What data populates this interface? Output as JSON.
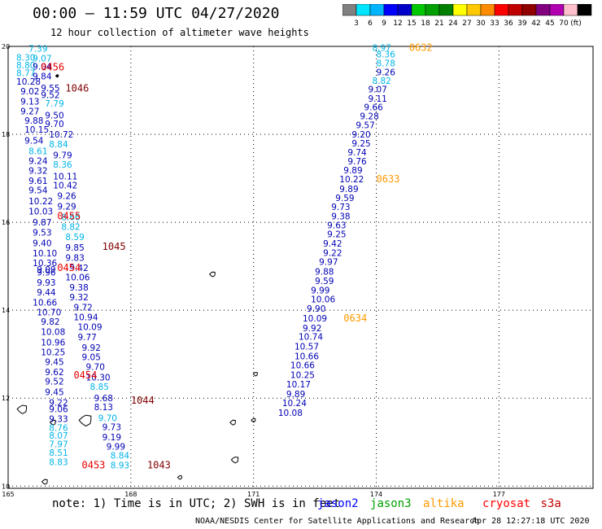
{
  "header": {
    "title": "00:00 – 11:59 UTC 04/27/2020",
    "subtitle": "12 hour collection of altimeter wave heights"
  },
  "color_scale": {
    "colors": [
      "#808080",
      "#00e5ff",
      "#00b4ff",
      "#0000ff",
      "#0000c8",
      "#00c800",
      "#00a000",
      "#008000",
      "#ffff00",
      "#ffc800",
      "#ff8c00",
      "#ff0000",
      "#c00000",
      "#900000",
      "#800080",
      "#b000b0",
      "#ffc0cb",
      "#000000"
    ],
    "labels": [
      "3",
      "6",
      "9",
      "12",
      "15",
      "18",
      "21",
      "24",
      "27",
      "30",
      "33",
      "36",
      "39",
      "42",
      "45",
      "70",
      "(ft)"
    ]
  },
  "map": {
    "x_ticks": [
      "165",
      "168",
      "171",
      "174",
      "177"
    ],
    "y_ticks": [
      "20",
      "18",
      "16",
      "14",
      "12",
      "10"
    ]
  },
  "chart_data": {
    "type": "scatter",
    "xlim": [
      165,
      179.3
    ],
    "ylim": [
      9.95,
      20.0
    ],
    "x_ticks": [
      165,
      168,
      171,
      174,
      177
    ],
    "y_ticks": [
      20,
      18,
      16,
      14,
      12,
      10
    ],
    "colors": {
      "blue": "#0000b4",
      "cyan": "#00b4e6",
      "red": "#e60000",
      "maroon": "#800000",
      "orange": "#ff9900"
    },
    "points": [
      {
        "lon": 165.5,
        "lat": 19.95,
        "t": "7.39",
        "c": "cyan"
      },
      {
        "lon": 165.2,
        "lat": 19.75,
        "t": "8.30",
        "c": "cyan"
      },
      {
        "lon": 165.6,
        "lat": 19.73,
        "t": "9.07",
        "c": "cyan"
      },
      {
        "lon": 165.2,
        "lat": 19.57,
        "t": "8.80",
        "c": "cyan"
      },
      {
        "lon": 165.6,
        "lat": 19.55,
        "t": "9.04",
        "c": "blue"
      },
      {
        "lon": 165.2,
        "lat": 19.4,
        "t": "8.77",
        "c": "cyan"
      },
      {
        "lon": 165.6,
        "lat": 19.32,
        "t": "9.84",
        "c": "blue"
      },
      {
        "lon": 165.2,
        "lat": 19.2,
        "t": "10.28",
        "c": "blue"
      },
      {
        "lon": 165.8,
        "lat": 19.06,
        "t": "9.55",
        "c": "blue"
      },
      {
        "lon": 165.3,
        "lat": 18.98,
        "t": "9.02",
        "c": "blue"
      },
      {
        "lon": 165.8,
        "lat": 18.9,
        "t": "9.52",
        "c": "blue"
      },
      {
        "lon": 165.3,
        "lat": 18.75,
        "t": "9.13",
        "c": "blue"
      },
      {
        "lon": 165.9,
        "lat": 18.7,
        "t": "7.79",
        "c": "cyan"
      },
      {
        "lon": 165.3,
        "lat": 18.53,
        "t": "9.27",
        "c": "blue"
      },
      {
        "lon": 165.9,
        "lat": 18.44,
        "t": "9.50",
        "c": "blue"
      },
      {
        "lon": 165.4,
        "lat": 18.32,
        "t": "9.88",
        "c": "blue"
      },
      {
        "lon": 165.9,
        "lat": 18.24,
        "t": "9.70",
        "c": "blue"
      },
      {
        "lon": 165.4,
        "lat": 18.11,
        "t": "10.15",
        "c": "blue"
      },
      {
        "lon": 166.0,
        "lat": 18.0,
        "t": "10.72",
        "c": "blue"
      },
      {
        "lon": 165.4,
        "lat": 17.86,
        "t": "9.54",
        "c": "blue"
      },
      {
        "lon": 166.0,
        "lat": 17.78,
        "t": "8.84",
        "c": "cyan"
      },
      {
        "lon": 165.5,
        "lat": 17.62,
        "t": "8.61",
        "c": "cyan"
      },
      {
        "lon": 166.1,
        "lat": 17.53,
        "t": "9.79",
        "c": "blue"
      },
      {
        "lon": 165.5,
        "lat": 17.4,
        "t": "9.24",
        "c": "blue"
      },
      {
        "lon": 166.1,
        "lat": 17.32,
        "t": "8.36",
        "c": "cyan"
      },
      {
        "lon": 165.5,
        "lat": 17.18,
        "t": "9.32",
        "c": "blue"
      },
      {
        "lon": 166.1,
        "lat": 17.05,
        "t": "10.11",
        "c": "blue"
      },
      {
        "lon": 165.5,
        "lat": 16.95,
        "t": "9.61",
        "c": "blue"
      },
      {
        "lon": 166.1,
        "lat": 16.84,
        "t": "10.42",
        "c": "blue"
      },
      {
        "lon": 165.5,
        "lat": 16.73,
        "t": "9.54",
        "c": "blue"
      },
      {
        "lon": 166.2,
        "lat": 16.6,
        "t": "9.26",
        "c": "blue"
      },
      {
        "lon": 165.5,
        "lat": 16.48,
        "t": "10.22",
        "c": "blue"
      },
      {
        "lon": 166.2,
        "lat": 16.36,
        "t": "9.29",
        "c": "blue"
      },
      {
        "lon": 165.5,
        "lat": 16.25,
        "t": "10.03",
        "c": "blue"
      },
      {
        "lon": 166.3,
        "lat": 16.12,
        "t": "8.66",
        "c": "cyan"
      },
      {
        "lon": 165.6,
        "lat": 16.0,
        "t": "9.87",
        "c": "blue"
      },
      {
        "lon": 166.3,
        "lat": 15.9,
        "t": "8.82",
        "c": "cyan"
      },
      {
        "lon": 165.6,
        "lat": 15.77,
        "t": "9.53",
        "c": "blue"
      },
      {
        "lon": 166.4,
        "lat": 15.67,
        "t": "8.59",
        "c": "cyan"
      },
      {
        "lon": 165.6,
        "lat": 15.53,
        "t": "9.40",
        "c": "blue"
      },
      {
        "lon": 166.4,
        "lat": 15.43,
        "t": "9.85",
        "c": "blue"
      },
      {
        "lon": 165.6,
        "lat": 15.3,
        "t": "10.10",
        "c": "blue"
      },
      {
        "lon": 166.4,
        "lat": 15.2,
        "t": "9.83",
        "c": "blue"
      },
      {
        "lon": 165.6,
        "lat": 15.08,
        "t": "10.36",
        "c": "blue"
      },
      {
        "lon": 166.5,
        "lat": 14.97,
        "t": "9.42",
        "c": "blue"
      },
      {
        "lon": 165.7,
        "lat": 14.93,
        "t": "9.09",
        "c": "blue"
      },
      {
        "lon": 165.7,
        "lat": 14.86,
        "t": "9.96",
        "c": "blue"
      },
      {
        "lon": 166.4,
        "lat": 14.75,
        "t": "10.06",
        "c": "blue"
      },
      {
        "lon": 165.7,
        "lat": 14.63,
        "t": "9.93",
        "c": "blue"
      },
      {
        "lon": 166.5,
        "lat": 14.52,
        "t": "9.38",
        "c": "blue"
      },
      {
        "lon": 165.7,
        "lat": 14.41,
        "t": "9.44",
        "c": "blue"
      },
      {
        "lon": 166.5,
        "lat": 14.3,
        "t": "9.32",
        "c": "blue"
      },
      {
        "lon": 165.6,
        "lat": 14.18,
        "t": "10.66",
        "c": "blue"
      },
      {
        "lon": 166.6,
        "lat": 14.07,
        "t": "9.72",
        "c": "blue"
      },
      {
        "lon": 165.7,
        "lat": 13.96,
        "t": "10.70",
        "c": "blue"
      },
      {
        "lon": 166.6,
        "lat": 13.85,
        "t": "10.94",
        "c": "blue"
      },
      {
        "lon": 165.8,
        "lat": 13.74,
        "t": "9.82",
        "c": "blue"
      },
      {
        "lon": 166.7,
        "lat": 13.62,
        "t": "10.09",
        "c": "blue"
      },
      {
        "lon": 165.8,
        "lat": 13.51,
        "t": "10.08",
        "c": "blue"
      },
      {
        "lon": 166.7,
        "lat": 13.39,
        "t": "9.77",
        "c": "blue"
      },
      {
        "lon": 165.8,
        "lat": 13.27,
        "t": "10.96",
        "c": "blue"
      },
      {
        "lon": 166.8,
        "lat": 13.15,
        "t": "9.92",
        "c": "blue"
      },
      {
        "lon": 165.8,
        "lat": 13.05,
        "t": "10.25",
        "c": "blue"
      },
      {
        "lon": 166.8,
        "lat": 12.94,
        "t": "9.05",
        "c": "blue"
      },
      {
        "lon": 165.9,
        "lat": 12.83,
        "t": "9.45",
        "c": "blue"
      },
      {
        "lon": 166.9,
        "lat": 12.72,
        "t": "9.70",
        "c": "blue"
      },
      {
        "lon": 165.9,
        "lat": 12.6,
        "t": "9.62",
        "c": "blue"
      },
      {
        "lon": 166.9,
        "lat": 12.48,
        "t": "10.30",
        "c": "blue"
      },
      {
        "lon": 165.9,
        "lat": 12.38,
        "t": "9.52",
        "c": "blue"
      },
      {
        "lon": 167.0,
        "lat": 12.26,
        "t": "8.85",
        "c": "cyan"
      },
      {
        "lon": 165.9,
        "lat": 12.14,
        "t": "9.45",
        "c": "blue"
      },
      {
        "lon": 167.1,
        "lat": 12.0,
        "t": "9.68",
        "c": "blue"
      },
      {
        "lon": 166.0,
        "lat": 11.9,
        "t": "9.22",
        "c": "blue"
      },
      {
        "lon": 167.1,
        "lat": 11.8,
        "t": "8.13",
        "c": "blue"
      },
      {
        "lon": 166.0,
        "lat": 11.75,
        "t": "9.06",
        "c": "blue"
      },
      {
        "lon": 167.2,
        "lat": 11.55,
        "t": "9.70",
        "c": "cyan"
      },
      {
        "lon": 166.0,
        "lat": 11.53,
        "t": "9.33",
        "c": "blue"
      },
      {
        "lon": 167.3,
        "lat": 11.35,
        "t": "9.73",
        "c": "blue"
      },
      {
        "lon": 166.0,
        "lat": 11.33,
        "t": "8.76",
        "c": "cyan"
      },
      {
        "lon": 167.3,
        "lat": 11.12,
        "t": "9.19",
        "c": "blue"
      },
      {
        "lon": 166.0,
        "lat": 11.15,
        "t": "8.07",
        "c": "cyan"
      },
      {
        "lon": 167.4,
        "lat": 10.9,
        "t": "9.99",
        "c": "blue"
      },
      {
        "lon": 166.0,
        "lat": 10.96,
        "t": "7.97",
        "c": "cyan"
      },
      {
        "lon": 167.5,
        "lat": 10.7,
        "t": "8.84",
        "c": "cyan"
      },
      {
        "lon": 166.0,
        "lat": 10.76,
        "t": "8.51",
        "c": "cyan"
      },
      {
        "lon": 167.5,
        "lat": 10.48,
        "t": "8.93",
        "c": "cyan"
      },
      {
        "lon": 166.0,
        "lat": 10.55,
        "t": "8.83",
        "c": "cyan"
      },
      {
        "lon": 173.9,
        "lat": 19.97,
        "t": "8.97",
        "c": "cyan"
      },
      {
        "lon": 174.0,
        "lat": 19.82,
        "t": "8.36",
        "c": "cyan"
      },
      {
        "lon": 174.0,
        "lat": 19.62,
        "t": "8.78",
        "c": "cyan"
      },
      {
        "lon": 174.0,
        "lat": 19.42,
        "t": "9.26",
        "c": "blue"
      },
      {
        "lon": 173.9,
        "lat": 19.22,
        "t": "8.82",
        "c": "cyan"
      },
      {
        "lon": 173.8,
        "lat": 19.03,
        "t": "9.07",
        "c": "blue"
      },
      {
        "lon": 173.8,
        "lat": 18.82,
        "t": "9.11",
        "c": "blue"
      },
      {
        "lon": 173.7,
        "lat": 18.62,
        "t": "9.66",
        "c": "blue"
      },
      {
        "lon": 173.6,
        "lat": 18.42,
        "t": "9.28",
        "c": "blue"
      },
      {
        "lon": 173.5,
        "lat": 18.21,
        "t": "9.57",
        "c": "blue"
      },
      {
        "lon": 173.4,
        "lat": 18.0,
        "t": "9.20",
        "c": "blue"
      },
      {
        "lon": 173.4,
        "lat": 17.8,
        "t": "9.25",
        "c": "blue"
      },
      {
        "lon": 173.3,
        "lat": 17.59,
        "t": "9.74",
        "c": "blue"
      },
      {
        "lon": 173.3,
        "lat": 17.39,
        "t": "9.76",
        "c": "blue"
      },
      {
        "lon": 173.2,
        "lat": 17.19,
        "t": "9.89",
        "c": "blue"
      },
      {
        "lon": 173.1,
        "lat": 16.98,
        "t": "10.22",
        "c": "blue"
      },
      {
        "lon": 173.1,
        "lat": 16.76,
        "t": "9.89",
        "c": "blue"
      },
      {
        "lon": 173.0,
        "lat": 16.56,
        "t": "9.59",
        "c": "blue"
      },
      {
        "lon": 172.9,
        "lat": 16.35,
        "t": "9.73",
        "c": "blue"
      },
      {
        "lon": 172.9,
        "lat": 16.14,
        "t": "9.38",
        "c": "blue"
      },
      {
        "lon": 172.8,
        "lat": 15.94,
        "t": "9.63",
        "c": "blue"
      },
      {
        "lon": 172.8,
        "lat": 15.73,
        "t": "9.25",
        "c": "blue"
      },
      {
        "lon": 172.7,
        "lat": 15.52,
        "t": "9.42",
        "c": "blue"
      },
      {
        "lon": 172.7,
        "lat": 15.31,
        "t": "9.22",
        "c": "blue"
      },
      {
        "lon": 172.6,
        "lat": 15.1,
        "t": "9.97",
        "c": "blue"
      },
      {
        "lon": 172.5,
        "lat": 14.88,
        "t": "9.88",
        "c": "blue"
      },
      {
        "lon": 172.5,
        "lat": 14.67,
        "t": "9.59",
        "c": "blue"
      },
      {
        "lon": 172.4,
        "lat": 14.46,
        "t": "9.99",
        "c": "blue"
      },
      {
        "lon": 172.4,
        "lat": 14.25,
        "t": "10.06",
        "c": "blue"
      },
      {
        "lon": 172.3,
        "lat": 14.04,
        "t": "9.90",
        "c": "blue"
      },
      {
        "lon": 172.2,
        "lat": 13.82,
        "t": "10.09",
        "c": "blue"
      },
      {
        "lon": 172.2,
        "lat": 13.6,
        "t": "9.92",
        "c": "blue"
      },
      {
        "lon": 172.1,
        "lat": 13.4,
        "t": "10.74",
        "c": "blue"
      },
      {
        "lon": 172.0,
        "lat": 13.18,
        "t": "10.57",
        "c": "blue"
      },
      {
        "lon": 172.0,
        "lat": 12.96,
        "t": "10.66",
        "c": "blue"
      },
      {
        "lon": 171.9,
        "lat": 12.75,
        "t": "10.66",
        "c": "blue"
      },
      {
        "lon": 171.9,
        "lat": 12.53,
        "t": "10.25",
        "c": "blue"
      },
      {
        "lon": 171.8,
        "lat": 12.32,
        "t": "10.17",
        "c": "blue"
      },
      {
        "lon": 171.8,
        "lat": 12.1,
        "t": "9.89",
        "c": "blue"
      },
      {
        "lon": 171.7,
        "lat": 11.89,
        "t": "10.24",
        "c": "blue"
      },
      {
        "lon": 171.6,
        "lat": 11.67,
        "t": "10.08",
        "c": "blue"
      }
    ],
    "time_labels": [
      {
        "lon": 165.8,
        "lat": 19.53,
        "t": "0456",
        "c": "red"
      },
      {
        "lon": 166.4,
        "lat": 19.05,
        "t": "1046",
        "c": "maroon"
      },
      {
        "lon": 166.2,
        "lat": 16.14,
        "t": "0455",
        "c": "red"
      },
      {
        "lon": 167.3,
        "lat": 15.45,
        "t": "1045",
        "c": "maroon"
      },
      {
        "lon": 166.2,
        "lat": 14.97,
        "t": "0454",
        "c": "red"
      },
      {
        "lon": 166.6,
        "lat": 12.52,
        "t": "0454",
        "c": "red"
      },
      {
        "lon": 168.0,
        "lat": 11.95,
        "t": "1044",
        "c": "maroon"
      },
      {
        "lon": 166.8,
        "lat": 10.48,
        "t": "0453",
        "c": "red"
      },
      {
        "lon": 168.4,
        "lat": 10.48,
        "t": "1043",
        "c": "maroon"
      },
      {
        "lon": 174.8,
        "lat": 19.97,
        "t": "0632",
        "c": "orange"
      },
      {
        "lon": 174.0,
        "lat": 16.98,
        "t": "0633",
        "c": "orange"
      },
      {
        "lon": 173.2,
        "lat": 13.82,
        "t": "0634",
        "c": "orange"
      }
    ]
  },
  "footer": {
    "note": "note: 1) Time is in UTC; 2) SWH is in feet",
    "legend": [
      {
        "name": "jason2",
        "color": "#0000ff"
      },
      {
        "name": "jason3",
        "color": "#00a000"
      },
      {
        "name": "altika",
        "color": "#ff9900"
      },
      {
        "name": "cryosat",
        "color": "#ff0000"
      },
      {
        "name": "s3a",
        "color": "#c00000"
      }
    ],
    "credit": "NOAA/NESDIS Center for Satellite Applications and Research",
    "timestamp": "Apr 28 12:27:18 UTC 2020"
  }
}
